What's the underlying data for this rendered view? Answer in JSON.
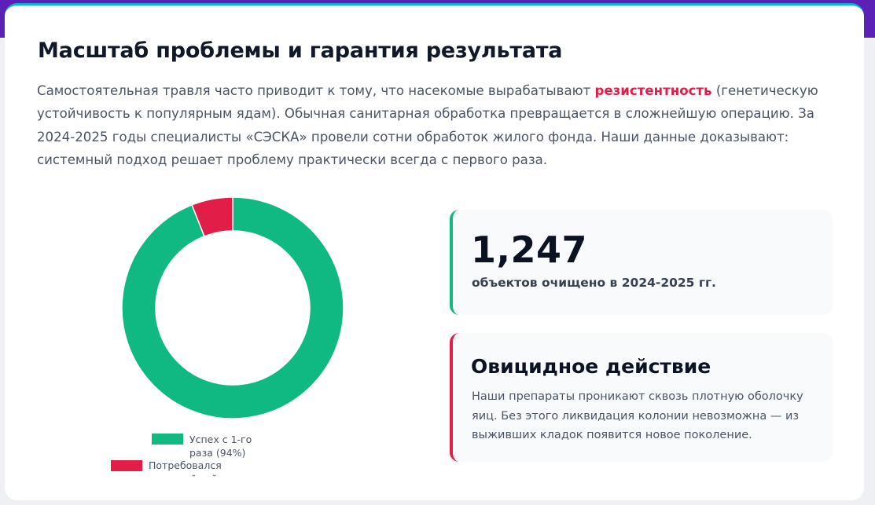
{
  "section": {
    "title": "Масштаб проблемы и гарантия результата",
    "intro_before": "Самостоятельная травля часто приводит к тому, что насекомые вырабатывают ",
    "intro_highlight": "резистентность",
    "intro_after": " (генетическую устойчивость к популярным ядам). Обычная санитарная обработка превращается в сложнейшую операцию. За 2024-2025 годы специалисты «СЭСКА» провели сотни обработок жилого фонда. Наши данные доказывают: системный подход решает проблему практически всегда с первого раза."
  },
  "chart_data": {
    "type": "pie",
    "variant": "doughnut",
    "categories": [
      "Успех с 1-го раза (94%)",
      "Потребовался гарантийный"
    ],
    "values": [
      94,
      6
    ],
    "colors": [
      "#10b981",
      "#e11d48"
    ],
    "legend": "bottom"
  },
  "stats": {
    "objects": {
      "number": "1,247",
      "label": "объектов очищено в 2024-2025 гг.",
      "accent": "#10b981"
    },
    "ovicide": {
      "heading": "Овицидное действие",
      "description": "Наши препараты проникают сквозь плотную оболочку яиц. Без этого ликвидация колонии невозможна — из выживших кладок появится новое поколение.",
      "accent": "#e11d48"
    }
  },
  "colors": {
    "header_band": "#5b21b6",
    "card_top_border": "#06b6d4",
    "highlight": "#e11d48"
  }
}
